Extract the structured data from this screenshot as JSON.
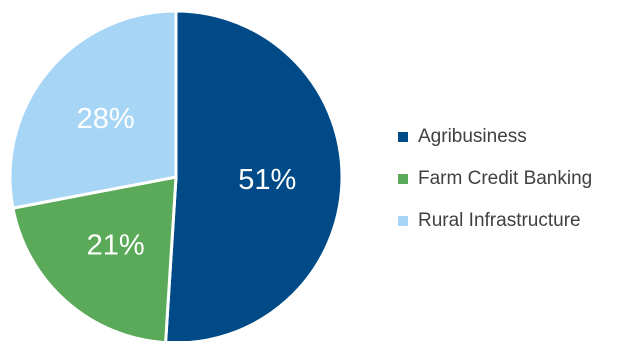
{
  "chart_data": {
    "type": "pie",
    "categories": [
      "Agribusiness",
      "Farm Credit Banking",
      "Rural Infrastructure"
    ],
    "values": [
      51,
      21,
      28
    ],
    "labels": [
      "51%",
      "21%",
      "28%"
    ],
    "colors": [
      "#004b87",
      "#5aaa59",
      "#a6d5f5"
    ],
    "title": "",
    "legend_position": "right",
    "start_angle_deg": 0,
    "direction": "clockwise"
  }
}
